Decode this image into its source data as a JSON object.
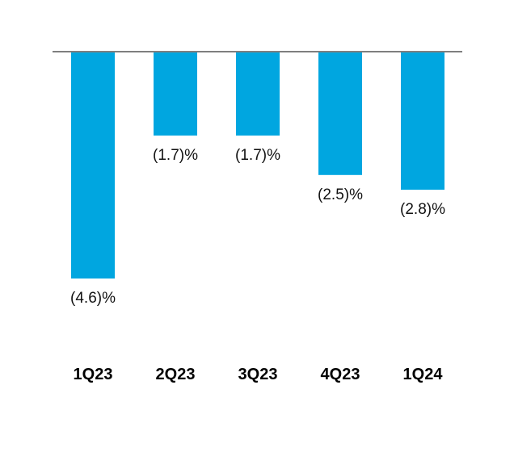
{
  "chart_data": {
    "type": "bar",
    "title": "",
    "xlabel": "",
    "ylabel": "",
    "categories": [
      "1Q23",
      "2Q23",
      "3Q23",
      "4Q23",
      "1Q24"
    ],
    "values": [
      -4.6,
      -1.7,
      -1.7,
      -2.5,
      -2.8
    ],
    "value_labels": [
      "(4.6)%",
      "(1.7)%",
      "(1.7)%",
      "(2.5)%",
      "(2.8)%"
    ],
    "ylim": [
      -5.5,
      0
    ],
    "grid": false,
    "legend": "none",
    "colors": {
      "bar": "#00a6e0",
      "baseline": "#7f7f7f",
      "text": "#111111"
    }
  }
}
